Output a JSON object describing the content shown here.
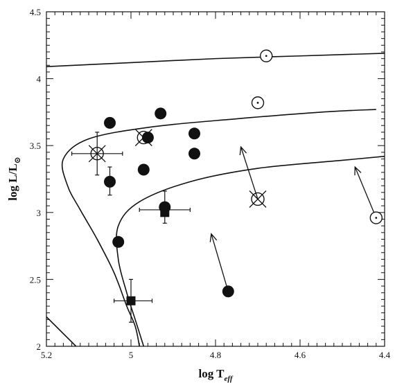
{
  "chart_data": {
    "type": "scatter",
    "title": "",
    "xlabel": {
      "base": "log T",
      "sub": "eff"
    },
    "ylabel": {
      "base": "log L/L",
      "sub": "⊙"
    },
    "xlim": [
      5.2,
      4.4
    ],
    "ylim": [
      2,
      4.5
    ],
    "x_reversed": true,
    "x_ticks": [
      "5.2",
      "5",
      "4.8",
      "4.6",
      "4.4"
    ],
    "y_ticks": [
      "2",
      "2.5",
      "3",
      "3.5",
      "4",
      "4.5"
    ],
    "tracks": [
      {
        "points": [
          [
            5.2,
            4.09
          ],
          [
            5.0,
            4.12
          ],
          [
            4.8,
            4.15
          ],
          [
            4.6,
            4.17
          ],
          [
            4.4,
            4.19
          ]
        ]
      },
      {
        "points": [
          [
            4.42,
            3.77
          ],
          [
            4.55,
            3.75
          ],
          [
            4.75,
            3.7
          ],
          [
            4.95,
            3.64
          ],
          [
            5.1,
            3.55
          ],
          [
            5.16,
            3.4
          ],
          [
            5.15,
            3.2
          ],
          [
            5.12,
            3.02
          ],
          [
            5.08,
            2.8
          ],
          [
            5.04,
            2.55
          ],
          [
            5.01,
            2.3
          ],
          [
            4.99,
            2.15
          ],
          [
            4.98,
            2.0
          ]
        ]
      },
      {
        "points": [
          [
            4.4,
            3.42
          ],
          [
            4.5,
            3.39
          ],
          [
            4.7,
            3.33
          ],
          [
            4.86,
            3.23
          ],
          [
            4.98,
            3.08
          ],
          [
            5.03,
            2.9
          ],
          [
            5.03,
            2.65
          ],
          [
            5.01,
            2.4
          ],
          [
            4.99,
            2.2
          ],
          [
            4.97,
            2.0
          ]
        ]
      },
      {
        "points": [
          [
            5.2,
            2.22
          ],
          [
            5.13,
            2.0
          ]
        ]
      }
    ],
    "filled_circles": [
      [
        5.05,
        3.67
      ],
      [
        4.93,
        3.74
      ],
      [
        4.85,
        3.59
      ],
      [
        4.96,
        3.56
      ],
      [
        4.85,
        3.44
      ],
      [
        4.97,
        3.32
      ],
      [
        5.05,
        3.23
      ],
      [
        4.92,
        3.04
      ],
      [
        5.03,
        2.78
      ],
      [
        4.77,
        2.41
      ]
    ],
    "filled_squares": [
      [
        4.92,
        3.0
      ],
      [
        5.0,
        2.34
      ]
    ],
    "open_circles_dot": [
      [
        4.68,
        4.17
      ],
      [
        4.7,
        3.82
      ],
      [
        4.42,
        2.96
      ]
    ],
    "crossed_circles": [
      [
        5.08,
        3.44
      ],
      [
        4.97,
        3.56
      ],
      [
        4.7,
        3.1
      ]
    ],
    "error_bars": [
      {
        "x": 5.08,
        "y": 3.44,
        "xerr": [
          5.14,
          5.02
        ],
        "yerr": [
          3.28,
          3.6
        ]
      },
      {
        "x": 4.92,
        "y": 3.02,
        "xerr": [
          4.98,
          4.86
        ],
        "yerr": [
          2.92,
          3.16
        ]
      },
      {
        "x": 5.0,
        "y": 2.34,
        "xerr": [
          5.04,
          4.95
        ],
        "yerr": [
          2.18,
          2.5
        ]
      },
      {
        "x": 5.05,
        "y": 3.23,
        "xerr": null,
        "yerr": [
          3.13,
          3.34
        ]
      }
    ],
    "arrows": [
      {
        "from": [
          4.7,
          3.1
        ],
        "to": [
          4.74,
          3.49
        ]
      },
      {
        "from": [
          4.42,
          2.96
        ],
        "to": [
          4.47,
          3.34
        ]
      },
      {
        "from": [
          4.77,
          2.41
        ],
        "to": [
          4.81,
          2.84
        ]
      }
    ]
  }
}
